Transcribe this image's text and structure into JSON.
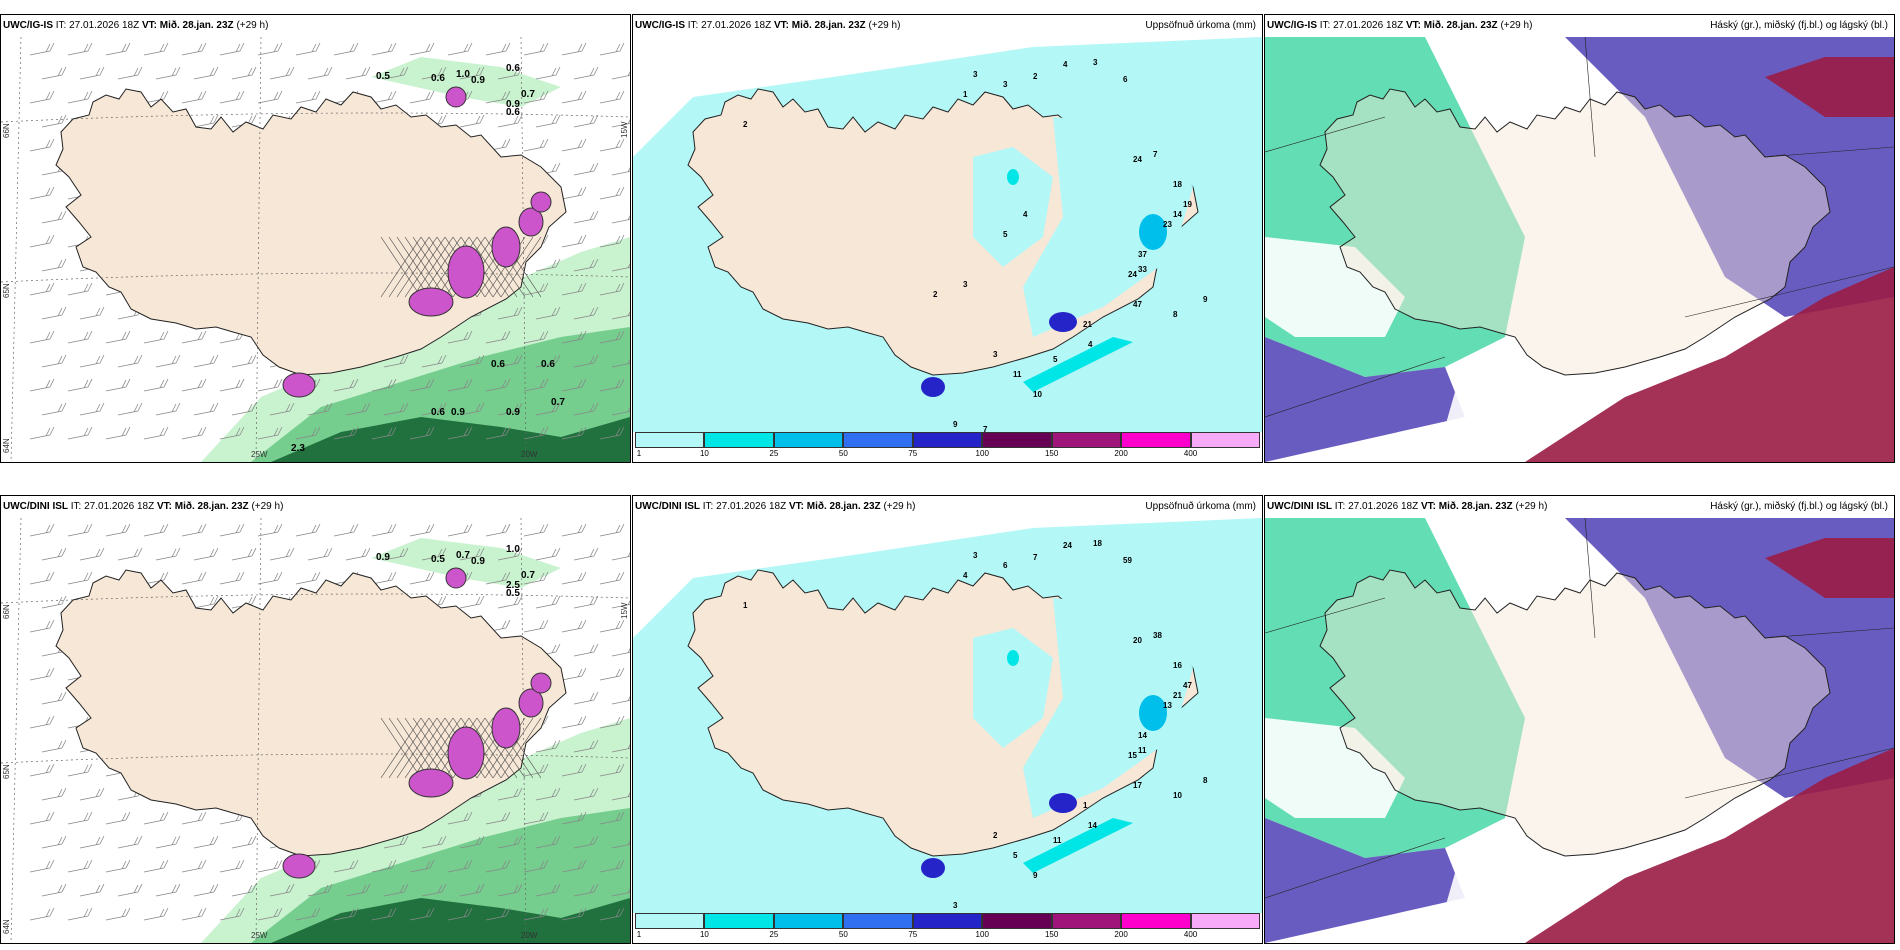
{
  "colors": {
    "land": "#f7e7d7",
    "sea_precip": "#b3f7f7",
    "green_light": "#c9f2cf",
    "green_mid": "#58c078",
    "green_dark": "#0b5a2a",
    "magenta": "#cc55cc",
    "purple": "#4d3fb5",
    "maroon": "#9a1c45",
    "teal": "#2fd19a"
  },
  "panels": [
    {
      "model": "UWC/IG-IS",
      "it_label": "IT:",
      "it": "27.01.2026 18Z",
      "vt_label": "VT:",
      "vt": "Mið. 28.jan. 23Z",
      "lead": "(+29 h)",
      "title_right": "",
      "labels": [
        "0.5",
        "0.6",
        "1.0",
        "0.9",
        "0.6",
        "0.7",
        "0.9",
        "0.6",
        "0.6",
        "0.6",
        "0.7",
        "0.9",
        "0.9",
        "0.6",
        "2.3"
      ],
      "grid_labels": [
        "66N",
        "65N",
        "64N",
        "25W",
        "20W",
        "15W"
      ]
    },
    {
      "model": "UWC/IG-IS",
      "it_label": "IT:",
      "it": "27.01.2026 18Z",
      "vt_label": "VT:",
      "vt": "Mið. 28.jan. 23Z",
      "lead": "(+29 h)",
      "title_right": "Uppsöfnuð úrkoma (mm)",
      "labels": [
        "1",
        "2",
        "3",
        "3",
        "2",
        "4",
        "3",
        "6",
        "7",
        "24",
        "18",
        "19",
        "14",
        "23",
        "37",
        "33",
        "47",
        "24",
        "8",
        "9",
        "4",
        "5",
        "10",
        "11",
        "3",
        "21",
        "9",
        "7",
        "2",
        "3",
        "5",
        "4"
      ]
    },
    {
      "model": "UWC/IG-IS",
      "it_label": "IT:",
      "it": "27.01.2026 18Z",
      "vt_label": "VT:",
      "vt": "Mið. 28.jan. 23Z",
      "lead": "(+29 h)",
      "title_right": "Háský (gr.), miðský (fj.bl.) og lágský (bl.)",
      "labels": []
    },
    {
      "model": "UWC/DINI ISL",
      "it_label": "IT:",
      "it": "27.01.2026 18Z",
      "vt_label": "VT:",
      "vt": "Mið. 28.jan. 23Z",
      "lead": "(+29 h)",
      "title_right": "",
      "labels": [
        "0.9",
        "0.5",
        "0.7",
        "0.9",
        "1.0",
        "0.7",
        "2.5",
        "0.5"
      ],
      "grid_labels": [
        "66N",
        "65N",
        "64N",
        "25W",
        "20W",
        "15W"
      ]
    },
    {
      "model": "UWC/DINI ISL",
      "it_label": "IT:",
      "it": "27.01.2026 18Z",
      "vt_label": "VT:",
      "vt": "Mið. 28.jan. 23Z",
      "lead": "(+29 h)",
      "title_right": "Uppsöfnuð úrkoma (mm)",
      "labels": [
        "4",
        "1",
        "3",
        "6",
        "7",
        "24",
        "18",
        "59",
        "38",
        "20",
        "16",
        "47",
        "21",
        "13",
        "14",
        "11",
        "17",
        "15",
        "10",
        "8",
        "14",
        "11",
        "9",
        "5",
        "2",
        "1",
        "3"
      ]
    },
    {
      "model": "UWC/DINI ISL",
      "it_label": "IT:",
      "it": "27.01.2026 18Z",
      "vt_label": "VT:",
      "vt": "Mið. 28.jan. 23Z",
      "lead": "(+29 h)",
      "title_right": "Háský (gr.), miðský (fj.bl.) og lágský (bl.)",
      "labels": []
    }
  ],
  "colorbar": {
    "ticks": [
      "1",
      "10",
      "25",
      "50",
      "75",
      "100",
      "150",
      "200",
      "400"
    ],
    "colors": [
      "#b3f7f7",
      "#00e6e6",
      "#00bfea",
      "#2f6ff0",
      "#2424c8",
      "#660055",
      "#a0157a",
      "#ff00cc",
      "#f7aaf7"
    ]
  }
}
